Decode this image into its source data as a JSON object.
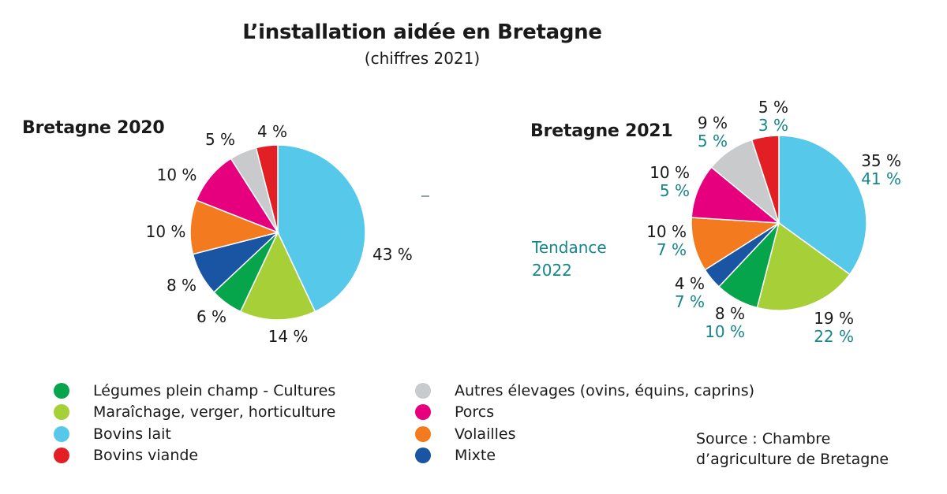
{
  "header": {
    "title": "L’installation aidée en Bretagne",
    "subtitle": "(chiffres 2021)"
  },
  "trend": {
    "line1": "Tendance",
    "line2": "2022"
  },
  "source": {
    "line1": "Source : Chambre",
    "line2": "d’agriculture de Bretagne"
  },
  "legend": {
    "left": [
      {
        "label": "Légumes plein champ - Cultures",
        "color": "#06a54b"
      },
      {
        "label": "Maraîchage, verger, horticulture",
        "color": "#a6cf38"
      },
      {
        "label": "Bovins lait",
        "color": "#56c8ea"
      },
      {
        "label": "Bovins viande",
        "color": "#e31f26"
      }
    ],
    "right": [
      {
        "label": "Autres élevages (ovins, équins, caprins)",
        "color": "#c9cacc"
      },
      {
        "label": "Porcs",
        "color": "#e6007e"
      },
      {
        "label": "Volailles",
        "color": "#f37a1f"
      },
      {
        "label": "Mixte",
        "color": "#1a55a4"
      }
    ]
  },
  "chart_data": [
    {
      "type": "pie",
      "title": "Bretagne 2020",
      "categories": [
        "Bovins lait",
        "Maraîchage, verger, horticulture",
        "Légumes plein champ - Cultures",
        "Mixte",
        "Volailles",
        "Porcs",
        "Autres élevages (ovins, équins, caprins)",
        "Bovins viande"
      ],
      "values": [
        43,
        14,
        6,
        8,
        10,
        10,
        5,
        4
      ],
      "labels": [
        "43 %",
        "14 %",
        "6 %",
        "8 %",
        "10 %",
        "10 %",
        "5 %",
        "4 %"
      ],
      "colors": [
        "#56c8ea",
        "#a6cf38",
        "#06a54b",
        "#1a55a4",
        "#f37a1f",
        "#e6007e",
        "#c9cacc",
        "#e31f26"
      ]
    },
    {
      "type": "pie",
      "title": "Bretagne 2021",
      "categories": [
        "Bovins lait",
        "Maraîchage, verger, horticulture",
        "Légumes plein champ - Cultures",
        "Mixte",
        "Volailles",
        "Porcs",
        "Autres élevages (ovins, équins, caprins)",
        "Bovins viande"
      ],
      "values": [
        35,
        19,
        8,
        4,
        10,
        10,
        9,
        5
      ],
      "labels": [
        "35 %",
        "19 %",
        "8 %",
        "4 %",
        "10 %",
        "10 %",
        "9 %",
        "5 %"
      ],
      "trend_2022": [
        41,
        22,
        10,
        7,
        7,
        5,
        5,
        3
      ],
      "trend_labels": [
        "41 %",
        "22 %",
        "10 %",
        "7 %",
        "7 %",
        "5 %",
        "5 %",
        "3 %"
      ],
      "colors": [
        "#56c8ea",
        "#a6cf38",
        "#06a54b",
        "#1a55a4",
        "#f37a1f",
        "#e6007e",
        "#c9cacc",
        "#e31f26"
      ]
    }
  ]
}
